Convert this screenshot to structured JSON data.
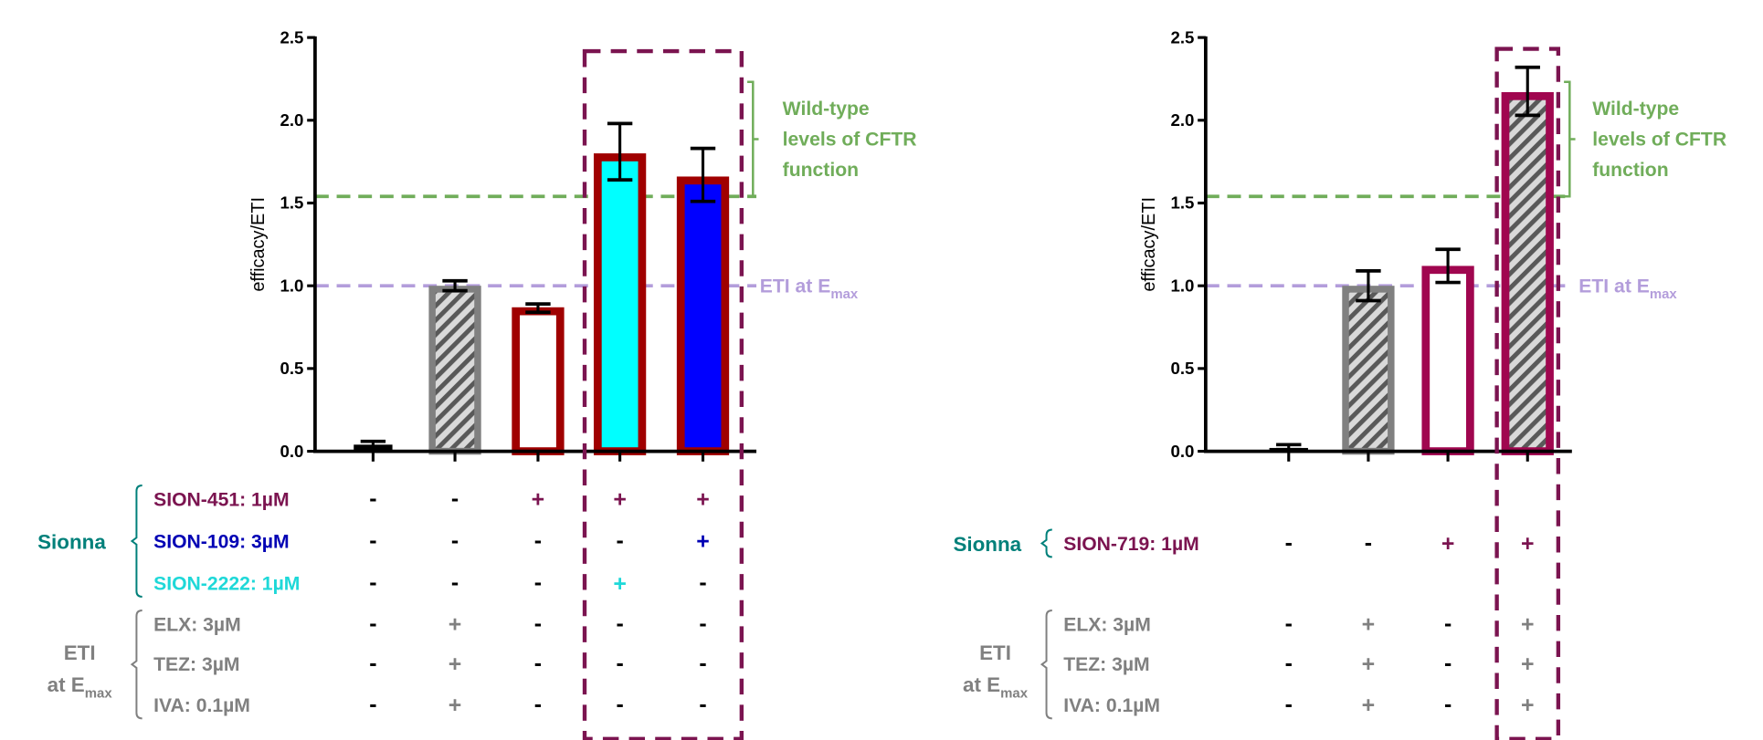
{
  "colors": {
    "axis": "#000000",
    "wild_type": "#70ad5a",
    "eti_line": "#b39ddb",
    "highlight_box": "#7b1450",
    "sionna": "#00807a",
    "sion_451": "#7b1450",
    "sion_109": "#0000b4",
    "sion_2222": "#1ed8d8",
    "sion_719": "#7b1450",
    "eti_text": "#808080",
    "grey_bar": "#808080",
    "hatch_light": "#d9d9d9",
    "red_border": "#a00000",
    "maroon_border": "#a0064f",
    "cyan_fill": "#00ffff",
    "blue_fill": "#0000ff"
  },
  "chart_data": [
    {
      "type": "bar",
      "ylabel": "efficacy/ETI",
      "ylim": [
        0,
        2.5
      ],
      "yticks": [
        "0.0",
        "0.5",
        "1.0",
        "1.5",
        "2.0",
        "2.5"
      ],
      "grid": false,
      "bars": [
        {
          "value": 0.04,
          "err_low": 0.02,
          "err_high": 0.06,
          "style": "black"
        },
        {
          "value": 1.0,
          "err_low": 0.97,
          "err_high": 1.03,
          "style": "grey-hatch"
        },
        {
          "value": 0.87,
          "err_low": 0.84,
          "err_high": 0.89,
          "style": "red-outline"
        },
        {
          "value": 1.8,
          "err_low": 1.64,
          "err_high": 1.98,
          "style": "red-cyan"
        },
        {
          "value": 1.66,
          "err_low": 1.51,
          "err_high": 1.83,
          "style": "red-blue"
        }
      ],
      "reference_lines": [
        {
          "value": 1.54,
          "label": "Wild-type levels of CFTR function",
          "label_lines": [
            "Wild-type",
            "levels of CFTR",
            "function"
          ],
          "color_key": "wild_type"
        },
        {
          "value": 1.0,
          "label_main": "ETI at E",
          "label_sub": "max",
          "color_key": "eti_line"
        }
      ],
      "highlighted_columns": [
        4,
        5
      ],
      "conditions": {
        "groups": [
          {
            "label": "Sionna",
            "color_key": "sionna"
          },
          {
            "label_line1": "ETI",
            "label_line2_main": "at E",
            "label_line2_sub": "max",
            "color_key": "eti_text"
          }
        ],
        "rows": [
          {
            "label": "SION-451: 1µM",
            "color_key": "sion_451",
            "group": 0,
            "signs": [
              "-",
              "-",
              "+",
              "+",
              "+"
            ]
          },
          {
            "label": "SION-109: 3µM",
            "color_key": "sion_109",
            "group": 0,
            "signs": [
              "-",
              "-",
              "-",
              "-",
              "+"
            ]
          },
          {
            "label": "SION-2222: 1µM",
            "color_key": "sion_2222",
            "group": 0,
            "signs": [
              "-",
              "-",
              "-",
              "+",
              "-"
            ]
          },
          {
            "label": "ELX: 3µM",
            "color_key": "eti_text",
            "group": 1,
            "signs": [
              "-",
              "+",
              "-",
              "-",
              "-"
            ]
          },
          {
            "label": "TEZ: 3µM",
            "color_key": "eti_text",
            "group": 1,
            "signs": [
              "-",
              "+",
              "-",
              "-",
              "-"
            ]
          },
          {
            "label": "IVA: 0.1µM",
            "color_key": "eti_text",
            "group": 1,
            "signs": [
              "-",
              "+",
              "-",
              "-",
              "-"
            ]
          }
        ]
      }
    },
    {
      "type": "bar",
      "ylabel": "efficacy/ETI",
      "ylim": [
        0,
        2.5
      ],
      "yticks": [
        "0.0",
        "0.5",
        "1.0",
        "1.5",
        "2.0",
        "2.5"
      ],
      "grid": false,
      "bars": [
        {
          "value": 0.02,
          "err_low": 0.01,
          "err_high": 0.04,
          "style": "black"
        },
        {
          "value": 1.0,
          "err_low": 0.91,
          "err_high": 1.09,
          "style": "grey-hatch"
        },
        {
          "value": 1.12,
          "err_low": 1.02,
          "err_high": 1.22,
          "style": "maroon-outline"
        },
        {
          "value": 2.17,
          "err_low": 2.03,
          "err_high": 2.32,
          "style": "maroon-hatch"
        }
      ],
      "reference_lines": [
        {
          "value": 1.54,
          "label": "Wild-type levels of CFTR function",
          "label_lines": [
            "Wild-type",
            "levels of CFTR",
            "function"
          ],
          "color_key": "wild_type"
        },
        {
          "value": 1.0,
          "label_main": "ETI at E",
          "label_sub": "max",
          "color_key": "eti_line"
        }
      ],
      "highlighted_columns": [
        4
      ],
      "conditions": {
        "groups": [
          {
            "label": "Sionna",
            "color_key": "sionna"
          },
          {
            "label_line1": "ETI",
            "label_line2_main": "at E",
            "label_line2_sub": "max",
            "color_key": "eti_text"
          }
        ],
        "rows": [
          {
            "label": "SION-719: 1µM",
            "color_key": "sion_719",
            "group": 0,
            "signs": [
              "-",
              "-",
              "+",
              "+"
            ]
          },
          {
            "label": "ELX: 3µM",
            "color_key": "eti_text",
            "group": 1,
            "signs": [
              "-",
              "+",
              "-",
              "+"
            ]
          },
          {
            "label": "TEZ: 3µM",
            "color_key": "eti_text",
            "group": 1,
            "signs": [
              "-",
              "+",
              "-",
              "+"
            ]
          },
          {
            "label": "IVA: 0.1µM",
            "color_key": "eti_text",
            "group": 1,
            "signs": [
              "-",
              "+",
              "-",
              "+"
            ]
          }
        ]
      }
    }
  ]
}
